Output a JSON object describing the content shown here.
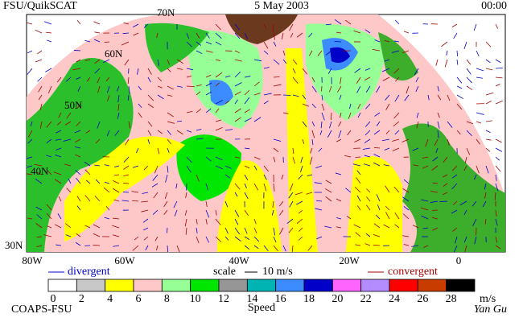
{
  "header": {
    "title": "FSU/QuikSCAT",
    "date": "5 May 2003",
    "time": "00:00"
  },
  "map": {
    "lat_labels": [
      "70N",
      "60N",
      "50N",
      "40N",
      "30N"
    ],
    "lon_labels": [
      "80W",
      "60W",
      "40W",
      "20W",
      "0"
    ]
  },
  "legend": {
    "divergent": "divergent",
    "scale": "scale",
    "scale_value": "10 m/s",
    "convergent": "convergent"
  },
  "colorbar": {
    "ticks": [
      0,
      2,
      4,
      6,
      8,
      10,
      12,
      14,
      16,
      18,
      20,
      22,
      24,
      26,
      28
    ],
    "unit": "m/s",
    "label": "Speed",
    "colors": [
      "#ffffff",
      "#c8c8c8",
      "#ffff00",
      "#ffc8c8",
      "#96ff96",
      "#00e600",
      "#969696",
      "#00b4b4",
      "#3c8cff",
      "#0000c8",
      "#ff64ff",
      "#b48cff",
      "#ff0000",
      "#c83c00",
      "#000000"
    ]
  },
  "footer": {
    "left": "COAPS-FSU",
    "right": "Yan Gu"
  }
}
